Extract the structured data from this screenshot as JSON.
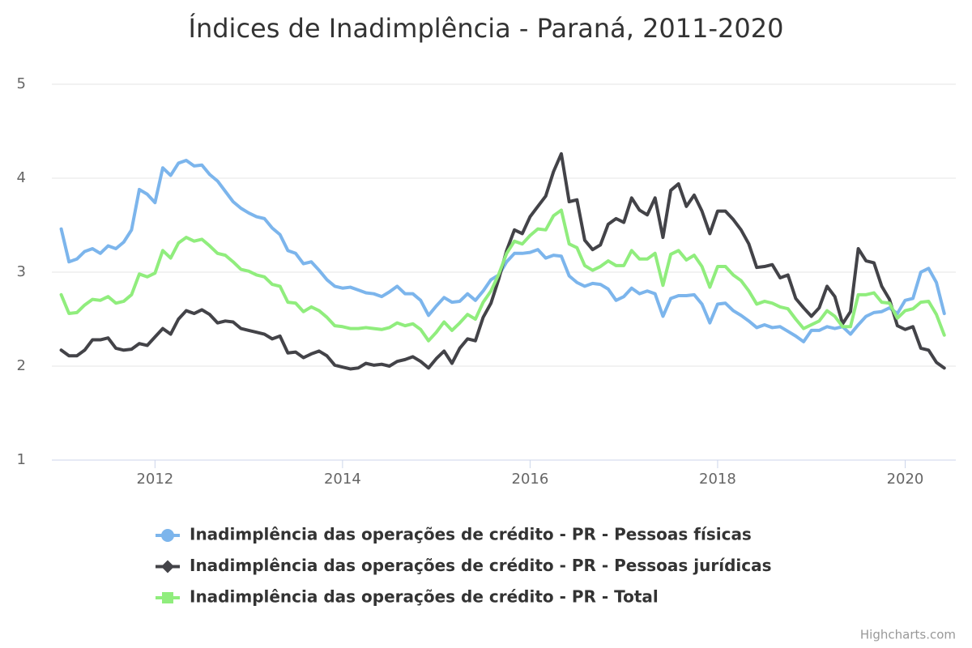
{
  "chart_data": {
    "type": "line",
    "title": "Índices de Inadimplência - Paraná, 2011-2020",
    "credits": "Highcharts.com",
    "xlim": [
      2010.9,
      2020.54
    ],
    "xticks": [
      2012,
      2014,
      2016,
      2018,
      2020
    ],
    "ylim": [
      1,
      5
    ],
    "yticks": [
      1,
      2,
      3,
      4,
      5
    ],
    "grid": true,
    "x": [
      2011,
      2011.083,
      2011.167,
      2011.25,
      2011.333,
      2011.417,
      2011.5,
      2011.583,
      2011.667,
      2011.75,
      2011.833,
      2011.917,
      2012,
      2012.083,
      2012.167,
      2012.25,
      2012.333,
      2012.417,
      2012.5,
      2012.583,
      2012.667,
      2012.75,
      2012.833,
      2012.917,
      2013,
      2013.083,
      2013.167,
      2013.25,
      2013.333,
      2013.417,
      2013.5,
      2013.583,
      2013.667,
      2013.75,
      2013.833,
      2013.917,
      2014,
      2014.083,
      2014.167,
      2014.25,
      2014.333,
      2014.417,
      2014.5,
      2014.583,
      2014.667,
      2014.75,
      2014.833,
      2014.917,
      2015,
      2015.083,
      2015.167,
      2015.25,
      2015.333,
      2015.417,
      2015.5,
      2015.583,
      2015.667,
      2015.75,
      2015.833,
      2015.917,
      2016,
      2016.083,
      2016.167,
      2016.25,
      2016.333,
      2016.417,
      2016.5,
      2016.583,
      2016.667,
      2016.75,
      2016.833,
      2016.917,
      2017,
      2017.083,
      2017.167,
      2017.25,
      2017.333,
      2017.417,
      2017.5,
      2017.583,
      2017.667,
      2017.75,
      2017.833,
      2017.917,
      2018,
      2018.083,
      2018.167,
      2018.25,
      2018.333,
      2018.417,
      2018.5,
      2018.583,
      2018.667,
      2018.75,
      2018.833,
      2018.917,
      2019,
      2019.083,
      2019.167,
      2019.25,
      2019.333,
      2019.417,
      2019.5,
      2019.583,
      2019.667,
      2019.75,
      2019.833,
      2019.917,
      2020,
      2020.083,
      2020.167,
      2020.25,
      2020.333,
      2020.417
    ],
    "series": [
      {
        "name": "Inadimplência das operações de crédito - PR - Pessoas físicas",
        "color": "#7cb5ec",
        "marker": "circle",
        "values": [
          3.46,
          3.11,
          3.14,
          3.22,
          3.25,
          3.2,
          3.28,
          3.25,
          3.32,
          3.45,
          3.88,
          3.83,
          3.74,
          4.11,
          4.03,
          4.16,
          4.19,
          4.13,
          4.14,
          4.04,
          3.97,
          3.86,
          3.75,
          3.68,
          3.63,
          3.59,
          3.57,
          3.47,
          3.4,
          3.23,
          3.2,
          3.09,
          3.11,
          3.02,
          2.92,
          2.85,
          2.83,
          2.84,
          2.81,
          2.78,
          2.77,
          2.74,
          2.79,
          2.85,
          2.77,
          2.77,
          2.7,
          2.54,
          2.64,
          2.73,
          2.68,
          2.69,
          2.77,
          2.7,
          2.8,
          2.92,
          2.97,
          3.11,
          3.2,
          3.2,
          3.21,
          3.24,
          3.15,
          3.18,
          3.17,
          2.96,
          2.89,
          2.85,
          2.88,
          2.87,
          2.82,
          2.7,
          2.74,
          2.83,
          2.77,
          2.8,
          2.77,
          2.53,
          2.72,
          2.75,
          2.75,
          2.76,
          2.66,
          2.46,
          2.66,
          2.67,
          2.59,
          2.54,
          2.48,
          2.41,
          2.44,
          2.41,
          2.42,
          2.37,
          2.32,
          2.26,
          2.38,
          2.38,
          2.42,
          2.4,
          2.42,
          2.34,
          2.44,
          2.53,
          2.57,
          2.58,
          2.62,
          2.56,
          2.7,
          2.72,
          3.0,
          3.04,
          2.89,
          2.56
        ]
      },
      {
        "name": "Inadimplência das operações de crédito - PR - Pessoas jurídicas",
        "color": "#434348",
        "marker": "diamond",
        "values": [
          2.17,
          2.11,
          2.11,
          2.17,
          2.28,
          2.28,
          2.3,
          2.19,
          2.17,
          2.18,
          2.24,
          2.22,
          2.31,
          2.4,
          2.34,
          2.5,
          2.59,
          2.56,
          2.6,
          2.55,
          2.46,
          2.48,
          2.47,
          2.4,
          2.38,
          2.36,
          2.34,
          2.29,
          2.32,
          2.14,
          2.15,
          2.09,
          2.13,
          2.16,
          2.11,
          2.01,
          1.99,
          1.97,
          1.98,
          2.03,
          2.01,
          2.02,
          2.0,
          2.05,
          2.07,
          2.1,
          2.05,
          1.98,
          2.08,
          2.16,
          2.03,
          2.19,
          2.29,
          2.27,
          2.52,
          2.67,
          2.93,
          3.23,
          3.45,
          3.41,
          3.59,
          3.7,
          3.81,
          4.07,
          4.26,
          3.75,
          3.77,
          3.34,
          3.24,
          3.29,
          3.51,
          3.57,
          3.53,
          3.79,
          3.66,
          3.61,
          3.79,
          3.37,
          3.87,
          3.94,
          3.7,
          3.82,
          3.65,
          3.41,
          3.65,
          3.65,
          3.56,
          3.45,
          3.3,
          3.05,
          3.06,
          3.08,
          2.94,
          2.97,
          2.72,
          2.62,
          2.53,
          2.62,
          2.85,
          2.74,
          2.45,
          2.58,
          3.25,
          3.12,
          3.1,
          2.85,
          2.71,
          2.43,
          2.39,
          2.42,
          2.19,
          2.17,
          2.04,
          1.98
        ]
      },
      {
        "name": "Inadimplência das operações de crédito - PR - Total",
        "color": "#90ed7d",
        "marker": "square",
        "values": [
          2.76,
          2.56,
          2.57,
          2.65,
          2.71,
          2.7,
          2.74,
          2.67,
          2.69,
          2.76,
          2.98,
          2.95,
          2.99,
          3.23,
          3.15,
          3.31,
          3.37,
          3.33,
          3.35,
          3.28,
          3.2,
          3.18,
          3.11,
          3.03,
          3.01,
          2.97,
          2.95,
          2.87,
          2.85,
          2.68,
          2.67,
          2.58,
          2.63,
          2.59,
          2.52,
          2.43,
          2.42,
          2.4,
          2.4,
          2.41,
          2.4,
          2.39,
          2.41,
          2.46,
          2.43,
          2.45,
          2.39,
          2.27,
          2.36,
          2.47,
          2.38,
          2.46,
          2.55,
          2.5,
          2.68,
          2.8,
          2.98,
          3.2,
          3.33,
          3.3,
          3.39,
          3.46,
          3.45,
          3.6,
          3.66,
          3.3,
          3.26,
          3.07,
          3.02,
          3.06,
          3.12,
          3.07,
          3.07,
          3.23,
          3.14,
          3.14,
          3.2,
          2.86,
          3.19,
          3.23,
          3.13,
          3.18,
          3.06,
          2.84,
          3.06,
          3.06,
          2.97,
          2.91,
          2.8,
          2.66,
          2.69,
          2.67,
          2.63,
          2.61,
          2.5,
          2.4,
          2.44,
          2.48,
          2.59,
          2.53,
          2.42,
          2.42,
          2.76,
          2.76,
          2.78,
          2.68,
          2.67,
          2.51,
          2.59,
          2.61,
          2.68,
          2.69,
          2.55,
          2.33
        ]
      }
    ]
  }
}
